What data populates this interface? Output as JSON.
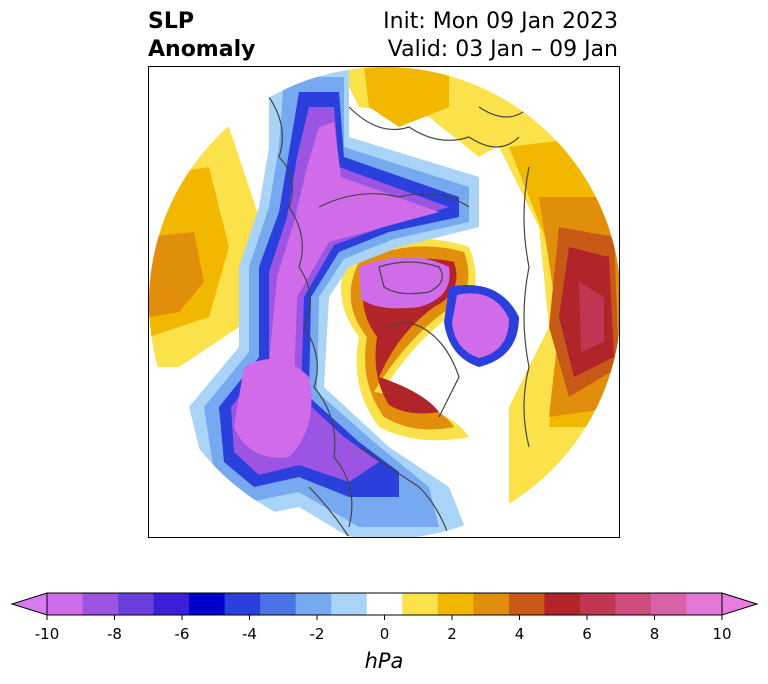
{
  "title": {
    "left_line1": "SLP",
    "left_line2": "Anomaly",
    "right_line1": "Init: Mon 09 Jan 2023",
    "right_line2": "Valid: 03 Jan – 09 Jan"
  },
  "colorbar": {
    "unit": "hPa",
    "ticks": [
      "-10",
      "-8",
      "-6",
      "-4",
      "-2",
      "0",
      "2",
      "4",
      "6",
      "8",
      "10"
    ],
    "levels": [
      -10,
      -9,
      -8,
      -7,
      -6,
      -5,
      -4,
      -3,
      -2,
      -1,
      1,
      2,
      3,
      4,
      5,
      6,
      7,
      8,
      9,
      10
    ],
    "extend": "both",
    "colors": [
      "#d06cea",
      "#9c55e3",
      "#6a3fdc",
      "#3b1ed8",
      "#0000cd",
      "#2a3fdc",
      "#4b74e6",
      "#77a9f0",
      "#a9d3f7",
      "#ffffff",
      "#fbe14a",
      "#f2b700",
      "#e08e0b",
      "#c75a17",
      "#b0242a",
      "#c13652",
      "#cc4d7d",
      "#d762a8",
      "#e279d8"
    ],
    "under_color": "#d87af0",
    "over_color": "#e87ae0"
  },
  "map": {
    "projection": "north-polar-stereographic"
  }
}
